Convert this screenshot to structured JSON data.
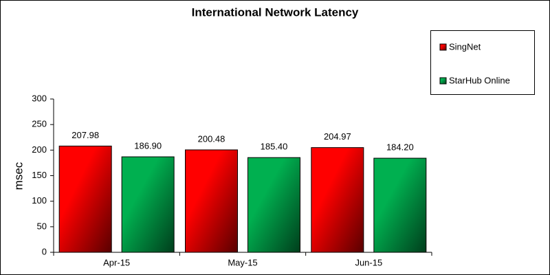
{
  "chart_data": {
    "type": "bar",
    "title": "International Network Latency",
    "y_label": "msec",
    "categories": [
      "Apr-15",
      "May-15",
      "Jun-15"
    ],
    "series": [
      {
        "name": "SingNet",
        "color": "#ff0000",
        "values": [
          207.98,
          200.48,
          204.97
        ],
        "value_labels": [
          "207.98",
          "200.48",
          "204.97"
        ]
      },
      {
        "name": "StarHub Online",
        "color": "#00b050",
        "values": [
          186.9,
          185.4,
          184.2
        ],
        "value_labels": [
          "186.90",
          "185.40",
          "184.20"
        ]
      }
    ],
    "ylim": [
      0,
      300
    ],
    "yticks": [
      0,
      50,
      100,
      150,
      200,
      250,
      300
    ],
    "grid": false,
    "legend": "right"
  }
}
